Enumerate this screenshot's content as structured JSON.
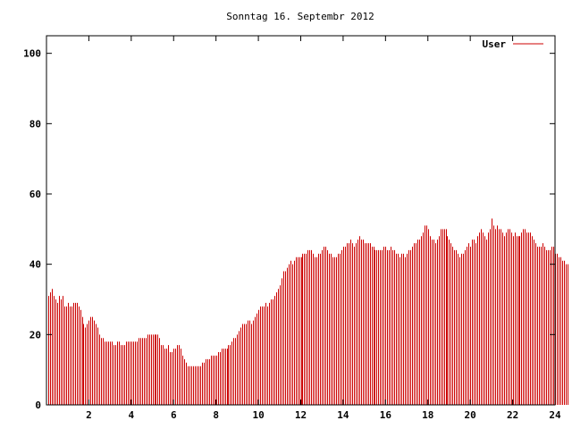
{
  "chart_data": {
    "type": "bar",
    "title": "Sonntag 16. Septembr 2012",
    "xlabel": "",
    "ylabel": "",
    "xlim": [
      0,
      24
    ],
    "ylim": [
      0,
      105
    ],
    "xticks": [
      2,
      4,
      6,
      8,
      10,
      12,
      14,
      16,
      18,
      20,
      22,
      24
    ],
    "yticks": [
      0,
      20,
      40,
      60,
      80,
      100
    ],
    "grid": false,
    "legend_position": "top-right",
    "series": [
      {
        "name": "User",
        "color": "#cc0000",
        "interval_minutes": 5,
        "values": [
          31,
          32,
          33,
          31,
          30,
          29,
          31,
          30,
          31,
          28,
          28,
          29,
          28,
          28,
          29,
          29,
          29,
          28,
          27,
          25,
          23,
          22,
          23,
          24,
          25,
          25,
          24,
          23,
          22,
          20,
          19,
          19,
          18,
          18,
          18,
          18,
          18,
          17,
          17,
          18,
          18,
          17,
          17,
          17,
          18,
          18,
          18,
          18,
          18,
          18,
          18,
          19,
          19,
          19,
          19,
          19,
          20,
          20,
          20,
          20,
          20,
          20,
          20,
          19,
          17,
          17,
          16,
          16,
          17,
          15,
          15,
          16,
          16,
          17,
          17,
          16,
          14,
          13,
          12,
          11,
          11,
          11,
          11,
          11,
          11,
          11,
          11,
          12,
          12,
          13,
          13,
          13,
          14,
          14,
          14,
          14,
          15,
          15,
          16,
          16,
          16,
          16,
          17,
          17,
          18,
          19,
          19,
          20,
          21,
          22,
          23,
          23,
          23,
          24,
          24,
          23,
          24,
          25,
          26,
          27,
          28,
          28,
          28,
          29,
          28,
          29,
          30,
          30,
          31,
          32,
          33,
          34,
          36,
          38,
          38,
          39,
          40,
          41,
          40,
          41,
          42,
          42,
          42,
          42,
          43,
          43,
          43,
          44,
          44,
          44,
          43,
          42,
          42,
          43,
          43,
          44,
          45,
          45,
          44,
          43,
          43,
          42,
          42,
          42,
          43,
          43,
          44,
          45,
          45,
          46,
          46,
          47,
          46,
          45,
          46,
          47,
          48,
          47,
          47,
          46,
          46,
          46,
          46,
          45,
          45,
          44,
          44,
          44,
          44,
          44,
          45,
          45,
          44,
          44,
          45,
          44,
          44,
          43,
          43,
          42,
          43,
          43,
          42,
          43,
          44,
          44,
          45,
          46,
          46,
          47,
          47,
          48,
          49,
          51,
          51,
          50,
          48,
          47,
          47,
          46,
          47,
          48,
          50,
          50,
          50,
          50,
          48,
          47,
          46,
          45,
          44,
          44,
          43,
          42,
          43,
          43,
          44,
          45,
          46,
          45,
          47,
          47,
          46,
          48,
          49,
          50,
          49,
          48,
          47,
          49,
          50,
          53,
          51,
          50,
          51,
          50,
          50,
          49,
          48,
          49,
          50,
          50,
          49,
          48,
          49,
          48,
          48,
          48,
          49,
          50,
          50,
          49,
          49,
          49,
          48,
          47,
          46,
          45,
          45,
          45,
          46,
          45,
          44,
          44,
          44,
          45,
          45,
          43,
          43,
          42,
          42,
          41,
          41,
          40,
          40
        ]
      }
    ]
  }
}
